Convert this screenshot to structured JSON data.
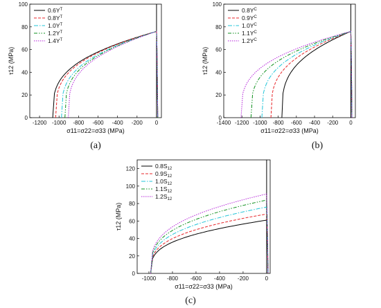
{
  "chart_data": [
    {
      "type": "line",
      "panel_label": "(a)",
      "xlabel": "σ11=σ22=σ33 (MPa)",
      "ylabel": "τ12 (MPa)",
      "xlim": [
        -1300,
        50
      ],
      "ylim": [
        0,
        100
      ],
      "xticks": [
        -1200,
        -1000,
        -800,
        -600,
        -400,
        -200,
        0
      ],
      "xtick_labels": [
        "-1200",
        "-1000",
        "-800",
        "-600",
        "-400",
        "-200",
        "0"
      ],
      "yticks": [
        0,
        20,
        40,
        60,
        80,
        100
      ],
      "ytick_labels": [
        "0",
        "20",
        "40",
        "60",
        "80",
        "100"
      ],
      "legend_position": "top-left",
      "right_branch_x": 12,
      "series": [
        {
          "name": "0.6Y",
          "superscript": "T",
          "color": "#000000",
          "dash": "",
          "x0": -1065,
          "ymax": 76
        },
        {
          "name": "0.8Y",
          "superscript": "T",
          "color": "#e8262a",
          "dash": "4,2",
          "x0": -1035,
          "ymax": 76
        },
        {
          "name": "1.0Y",
          "superscript": "T",
          "color": "#1fc4d8",
          "dash": "6,2,1.5,2",
          "x0": -975,
          "ymax": 76
        },
        {
          "name": "1.2Y",
          "superscript": "T",
          "color": "#0d8f1c",
          "dash": "5,2,1.5,2,1.5,2",
          "x0": -940,
          "ymax": 76
        },
        {
          "name": "1.4Y",
          "superscript": "T",
          "color": "#b31fd8",
          "dash": "1.5,1.5",
          "x0": -905,
          "ymax": 76
        }
      ]
    },
    {
      "type": "line",
      "panel_label": "(b)",
      "xlabel": "σ11=σ22=σ33 (MPa)",
      "ylabel": "τ12 (MPa)",
      "xlim": [
        -1400,
        50
      ],
      "ylim": [
        0,
        100
      ],
      "xticks": [
        -1400,
        -1200,
        -1000,
        -800,
        -600,
        -400,
        -200,
        0
      ],
      "xtick_labels": [
        "-1400",
        "-1200",
        "-1000",
        "-800",
        "-600",
        "-400",
        "-200",
        "0"
      ],
      "yticks": [
        0,
        20,
        40,
        60,
        80,
        100
      ],
      "ytick_labels": [
        "0",
        "20",
        "40",
        "60",
        "80",
        "100"
      ],
      "legend_position": "top-left",
      "right_branch_x": 12,
      "series": [
        {
          "name": "0.8Y",
          "superscript": "C",
          "color": "#000000",
          "dash": "",
          "x0": -760,
          "ymax": 76
        },
        {
          "name": "0.9Y",
          "superscript": "C",
          "color": "#e8262a",
          "dash": "4,2",
          "x0": -880,
          "ymax": 76
        },
        {
          "name": "1.0Y",
          "superscript": "C",
          "color": "#1fc4d8",
          "dash": "6,2,1.5,2",
          "x0": -980,
          "ymax": 76
        },
        {
          "name": "1.1Y",
          "superscript": "C",
          "color": "#0d8f1c",
          "dash": "5,2,1.5,2,1.5,2",
          "x0": -1100,
          "ymax": 76
        },
        {
          "name": "1.2Y",
          "superscript": "C",
          "color": "#b31fd8",
          "dash": "1.5,1.5",
          "x0": -1210,
          "ymax": 76
        }
      ]
    },
    {
      "type": "line",
      "panel_label": "(c)",
      "xlabel": "σ11=σ22=σ33 (MPa)",
      "ylabel": "τ12 (MPa)",
      "xlim": [
        -1100,
        30
      ],
      "ylim": [
        0,
        130
      ],
      "xticks": [
        -1000,
        -800,
        -600,
        -400,
        -200,
        0
      ],
      "xtick_labels": [
        "-1000",
        "-800",
        "-600",
        "-400",
        "-200",
        "0"
      ],
      "yticks": [
        0,
        20,
        40,
        60,
        80,
        100,
        120
      ],
      "ytick_labels": [
        "0",
        "20",
        "40",
        "60",
        "80",
        "100",
        "120"
      ],
      "legend_position": "top-left",
      "right_branch_x": 12,
      "series": [
        {
          "name": "0.8S",
          "subscript": "12",
          "color": "#000000",
          "dash": "",
          "x0": -985,
          "ymax": 61
        },
        {
          "name": "0.9S",
          "subscript": "12",
          "color": "#e8262a",
          "dash": "4,2",
          "x0": -985,
          "ymax": 68
        },
        {
          "name": "1.0S",
          "subscript": "12",
          "color": "#1fc4d8",
          "dash": "6,2,1.5,2",
          "x0": -985,
          "ymax": 76
        },
        {
          "name": "1.1S",
          "subscript": "12",
          "color": "#0d8f1c",
          "dash": "5,2,1.5,2,1.5,2",
          "x0": -985,
          "ymax": 84
        },
        {
          "name": "1.2S",
          "subscript": "12",
          "color": "#b31fd8",
          "dash": "1.5,1.5",
          "x0": -985,
          "ymax": 91
        }
      ]
    }
  ]
}
